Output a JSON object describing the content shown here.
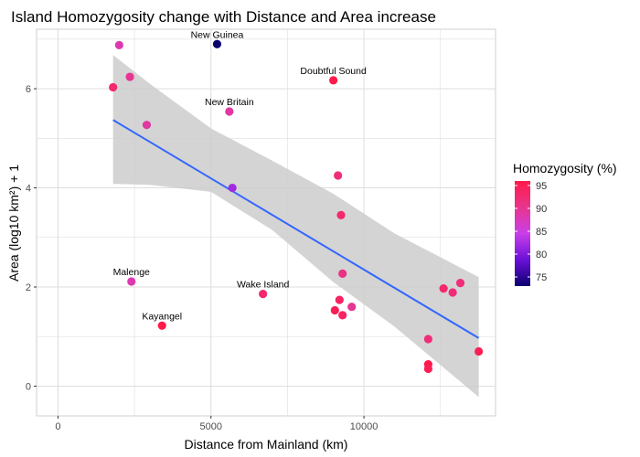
{
  "chart_data": {
    "type": "scatter",
    "title": "Island Homozygosity change with Distance and Area increase",
    "xlabel": "Distance from Mainland (km)",
    "ylabel": "Area (log10 km²) + 1",
    "xlim": [
      -700,
      14300
    ],
    "ylim": [
      -0.6,
      7.2
    ],
    "xticks": [
      0,
      5000,
      10000
    ],
    "yticks": [
      0,
      2,
      4,
      6
    ],
    "xtick_labels": [
      "0",
      "5000",
      "10000"
    ],
    "ytick_labels": [
      "0",
      "2",
      "4",
      "6"
    ],
    "grid": true,
    "legend": {
      "title": "Homozygosity (%)",
      "position": "right",
      "range": [
        73,
        96
      ],
      "ticks": [
        75,
        80,
        85,
        90,
        95
      ],
      "tick_labels": [
        "75",
        "80",
        "85",
        "90",
        "95"
      ],
      "colors": [
        "#0b006e",
        "#6a10d8",
        "#c93fe8",
        "#e8358e",
        "#ff1a4a"
      ]
    },
    "points": [
      {
        "x": 2000,
        "y": 6.88,
        "h": 88,
        "label": ""
      },
      {
        "x": 1800,
        "y": 6.03,
        "h": 93,
        "label": ""
      },
      {
        "x": 2350,
        "y": 6.24,
        "h": 90,
        "label": ""
      },
      {
        "x": 2900,
        "y": 5.27,
        "h": 89,
        "label": ""
      },
      {
        "x": 5200,
        "y": 6.9,
        "h": 73,
        "label": "New Guinea"
      },
      {
        "x": 5600,
        "y": 5.54,
        "h": 89,
        "label": "New Britain"
      },
      {
        "x": 5700,
        "y": 4.0,
        "h": 82,
        "label": ""
      },
      {
        "x": 9000,
        "y": 6.17,
        "h": 96,
        "label": "Doubtful Sound"
      },
      {
        "x": 9150,
        "y": 4.25,
        "h": 92,
        "label": ""
      },
      {
        "x": 9250,
        "y": 3.45,
        "h": 93,
        "label": ""
      },
      {
        "x": 9300,
        "y": 2.27,
        "h": 91,
        "label": ""
      },
      {
        "x": 2400,
        "y": 2.11,
        "h": 88,
        "label": "Malenge"
      },
      {
        "x": 6700,
        "y": 1.86,
        "h": 93,
        "label": "Wake Island"
      },
      {
        "x": 3400,
        "y": 1.22,
        "h": 96,
        "label": "Kayangel"
      },
      {
        "x": 9200,
        "y": 1.74,
        "h": 94,
        "label": ""
      },
      {
        "x": 9600,
        "y": 1.6,
        "h": 90,
        "label": ""
      },
      {
        "x": 9050,
        "y": 1.53,
        "h": 95,
        "label": ""
      },
      {
        "x": 9300,
        "y": 1.43,
        "h": 94,
        "label": ""
      },
      {
        "x": 12600,
        "y": 1.97,
        "h": 93,
        "label": ""
      },
      {
        "x": 12900,
        "y": 1.89,
        "h": 92,
        "label": ""
      },
      {
        "x": 13150,
        "y": 2.08,
        "h": 92,
        "label": ""
      },
      {
        "x": 12100,
        "y": 0.95,
        "h": 92,
        "label": ""
      },
      {
        "x": 12100,
        "y": 0.44,
        "h": 96,
        "label": ""
      },
      {
        "x": 12100,
        "y": 0.35,
        "h": 95,
        "label": ""
      },
      {
        "x": 13750,
        "y": 0.7,
        "h": 95,
        "label": ""
      }
    ],
    "trend": {
      "x": [
        1800,
        13750
      ],
      "y": [
        5.37,
        0.97
      ],
      "band_x": [
        1800,
        3000,
        5000,
        7000,
        9000,
        11000,
        13750
      ],
      "band_lower": [
        4.08,
        4.06,
        3.92,
        3.15,
        2.1,
        1.2,
        -0.22
      ],
      "band_upper": [
        6.68,
        6.1,
        5.2,
        4.55,
        3.88,
        3.08,
        2.2
      ],
      "color": "#3366ff",
      "band_color": "#cccccc"
    }
  }
}
